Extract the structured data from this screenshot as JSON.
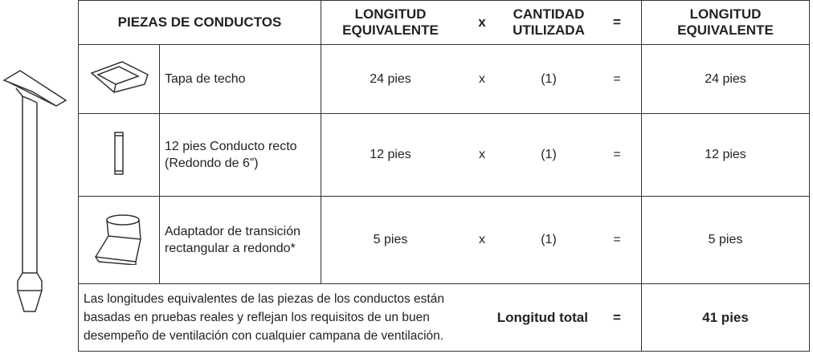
{
  "table": {
    "header": [
      "PIEZAS DE CONDUCTOS",
      "LONGITUD EQUIVALENTE",
      "x",
      "CANTIDAD UTILIZADA",
      "=",
      "LONGITUD EQUIVALENTE"
    ],
    "rows": [
      [
        "Tapa de techo",
        "24 pies",
        "x",
        "(1)",
        "=",
        "24 pies"
      ],
      [
        "12 pies Conducto recto (Redondo de 6”)",
        "12 pies",
        "x",
        "(1)",
        "=",
        "12 pies"
      ],
      [
        "Adaptador de transición rectangular a redondo*",
        "5 pies",
        "x",
        "(1)",
        "=",
        "5 pies"
      ]
    ],
    "footer": {
      "note": "Las longitudes equivalentes de las piezas de los conductos están basadas en pruebas reales y reflejan los requisitos de un buen desempeño de ventilación con cualquier campana de ventilación.",
      "label": "Longitud total",
      "operator": "=",
      "total": "41 pies"
    }
  }
}
